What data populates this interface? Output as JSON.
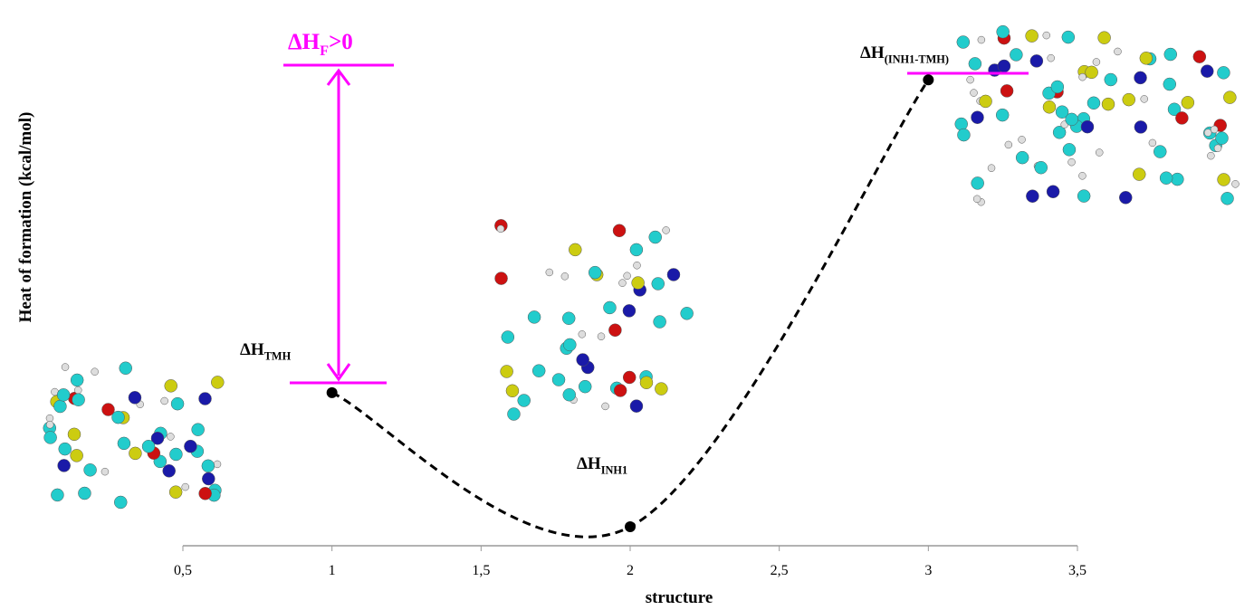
{
  "chart_data": {
    "type": "line",
    "x_label": "structure",
    "y_label": "Heat of formation (kcal/mol)",
    "x": [
      1,
      2,
      3
    ],
    "series": [
      {
        "color": "#000000",
        "values": [
          29,
          3.6,
          88.3
        ]
      }
    ],
    "xlim": [
      0.5,
      3.5
    ],
    "ylim": [
      0,
      100
    ],
    "xticks": [
      {
        "value": 0.5,
        "label": "0,5"
      },
      1,
      {
        "value": 1.5,
        "label": "1,5"
      },
      2,
      {
        "value": 2.5,
        "label": "2,5"
      },
      3,
      {
        "value": 3.5,
        "label": "3,5"
      }
    ],
    "smooth": true,
    "dashed": true,
    "annotation_color": "#ff00ff",
    "annotations": [
      {
        "main": "ΔH",
        "sub": "F",
        "tail": ">0"
      },
      {
        "main": "ΔH",
        "sub": "TMH"
      },
      {
        "main": "ΔH",
        "sub": "INH1"
      },
      {
        "main": "ΔH",
        "sub": "(INH1-TMH)"
      }
    ]
  }
}
